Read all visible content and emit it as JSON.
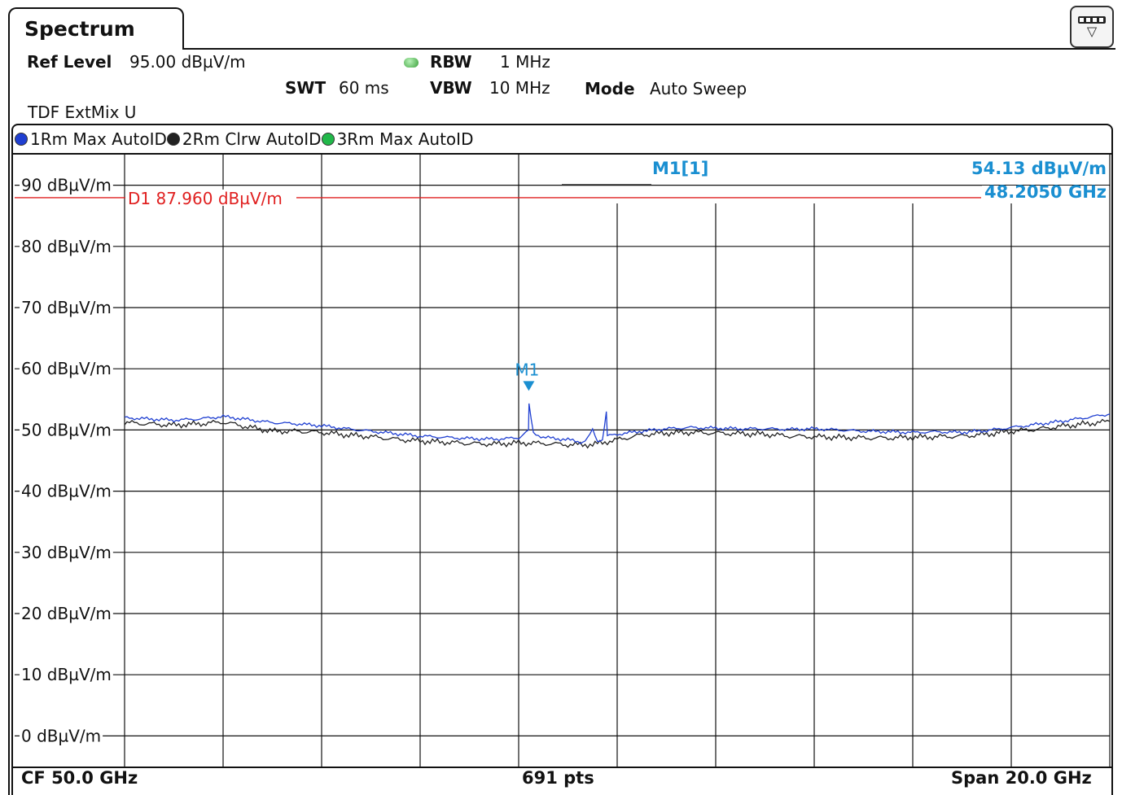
{
  "tab": {
    "title": "Spectrum"
  },
  "header": {
    "ref_level_label": "Ref Level",
    "ref_level_value": "95.00 dBµV/m",
    "rbw_label": "RBW",
    "rbw_value": "1 MHz",
    "swt_label": "SWT",
    "swt_value": "60 ms",
    "vbw_label": "VBW",
    "vbw_value": "10 MHz",
    "mode_label": "Mode",
    "mode_value": "Auto Sweep",
    "mixer": "TDF ExtMix U"
  },
  "legend": [
    {
      "label": "1Rm Max AutoID",
      "color": "#1f3fd1"
    },
    {
      "label": "2Rm Clrw AutoID",
      "color": "#222222"
    },
    {
      "label": "3Rm Max AutoID",
      "color": "#21b84a"
    }
  ],
  "marker_info": {
    "name": "M1[1]",
    "level": "54.13 dBµV/m",
    "freq": "48.2050 GHz"
  },
  "display_line": {
    "label": "D1 87.960 dBµV/m",
    "value": 87.96,
    "color": "#e02020"
  },
  "footer": {
    "cf": "CF 50.0 GHz",
    "pts": "691 pts",
    "span": "Span 20.0 GHz"
  },
  "chart_data": {
    "type": "line",
    "x_unit": "GHz",
    "xlim": [
      40.0,
      60.0
    ],
    "ylim": [
      -5,
      95
    ],
    "y_ticks": [
      0,
      10,
      20,
      30,
      40,
      50,
      60,
      70,
      80,
      90
    ],
    "y_tick_labels": [
      "0 dBµV/m",
      "10 dBµV/m",
      "20 dBµV/m",
      "30 dBµV/m",
      "40 dBµV/m",
      "50 dBµV/m",
      "60 dBµV/m",
      "70 dBµV/m",
      "80 dBµV/m",
      "90 dBµV/m"
    ],
    "x_divisions": 10,
    "grid": true,
    "series": [
      {
        "name": "1Rm Max AutoID",
        "color": "#1f3fd1",
        "x": [
          40.0,
          40.5,
          41.0,
          41.5,
          42.0,
          42.5,
          43.0,
          43.5,
          44.0,
          44.5,
          45.0,
          45.5,
          46.0,
          46.5,
          47.0,
          47.5,
          48.0,
          48.2,
          48.21,
          48.3,
          48.5,
          49.0,
          49.3,
          49.4,
          49.5,
          49.6,
          49.7,
          49.78,
          49.8,
          50.0,
          50.5,
          51.0,
          51.5,
          52.0,
          52.5,
          53.0,
          53.5,
          54.0,
          54.5,
          55.0,
          55.5,
          56.0,
          56.5,
          57.0,
          57.5,
          58.0,
          58.5,
          59.0,
          59.5,
          60.0
        ],
        "y": [
          52.0,
          51.8,
          51.6,
          51.8,
          52.2,
          51.7,
          51.2,
          51.0,
          50.7,
          50.2,
          49.8,
          49.4,
          49.0,
          48.8,
          48.6,
          48.5,
          48.7,
          50.0,
          54.13,
          49.5,
          48.8,
          48.4,
          48.0,
          48.6,
          50.0,
          48.2,
          48.5,
          53.0,
          49.0,
          49.3,
          49.8,
          50.2,
          50.4,
          50.3,
          50.2,
          50.2,
          50.1,
          50.2,
          50.0,
          49.8,
          49.7,
          49.6,
          49.7,
          49.6,
          49.9,
          50.4,
          50.9,
          51.4,
          52.0,
          52.6
        ]
      },
      {
        "name": "2Rm Clrw AutoID",
        "color": "#222222",
        "x": [
          40.0,
          40.5,
          41.0,
          41.5,
          42.0,
          42.5,
          43.0,
          43.5,
          44.0,
          44.5,
          45.0,
          45.5,
          46.0,
          46.5,
          47.0,
          47.5,
          48.0,
          48.5,
          49.0,
          49.5,
          50.0,
          50.5,
          51.0,
          51.5,
          52.0,
          52.5,
          53.0,
          53.5,
          54.0,
          54.5,
          55.0,
          55.5,
          56.0,
          56.5,
          57.0,
          57.5,
          58.0,
          58.5,
          59.0,
          59.5,
          60.0
        ],
        "y": [
          51.2,
          51.0,
          50.8,
          51.0,
          51.3,
          50.5,
          49.8,
          49.8,
          49.6,
          49.2,
          48.9,
          48.5,
          48.2,
          48.0,
          47.8,
          47.7,
          47.9,
          47.8,
          47.6,
          47.6,
          48.4,
          49.2,
          49.5,
          49.6,
          49.5,
          49.4,
          49.3,
          49.0,
          48.9,
          48.8,
          48.7,
          48.7,
          48.8,
          48.9,
          49.0,
          49.3,
          49.8,
          50.1,
          50.6,
          51.0,
          51.4
        ]
      }
    ],
    "markers": [
      {
        "label": "M1",
        "x": 48.205,
        "y": 54.13
      }
    ]
  }
}
